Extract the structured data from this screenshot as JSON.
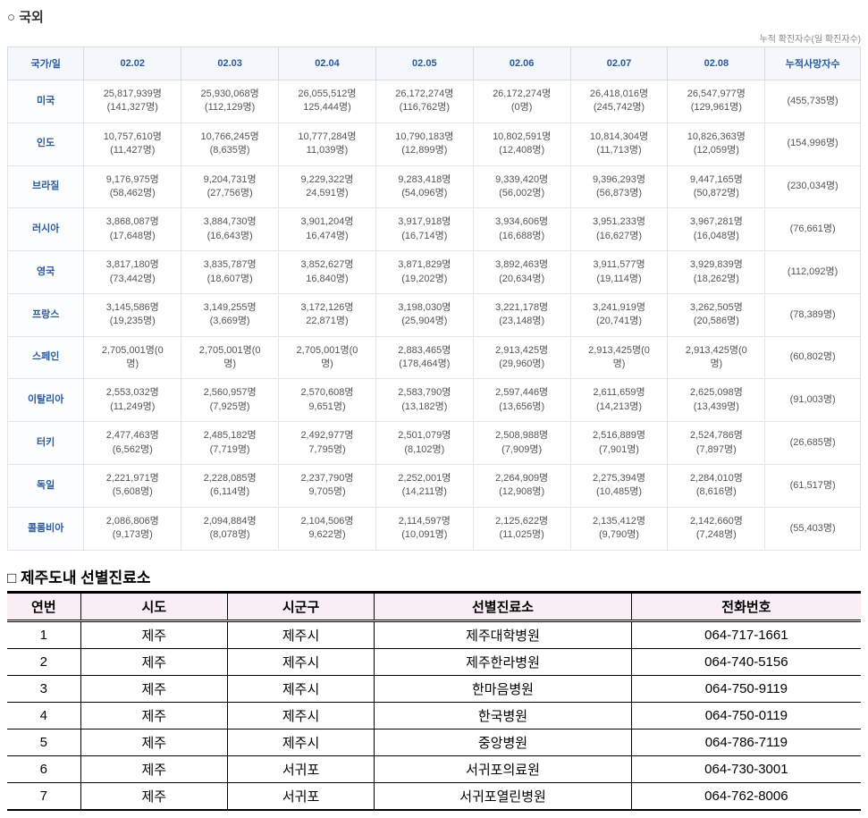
{
  "intl": {
    "section_title": "○ 국외",
    "caption": "누적 확진자수(일 확진자수)",
    "headers": {
      "country": "국가/일",
      "days": [
        "02.02",
        "02.03",
        "02.04",
        "02.05",
        "02.06",
        "02.07",
        "02.08"
      ],
      "deaths": "누적사망자수"
    },
    "rows": [
      {
        "country": "미국",
        "cells": [
          "25,817,939명\n(141,327명)",
          "25,930,068명\n(112,129명)",
          "26,055,512명\n125,444명)",
          "26,172,274명\n(116,762명)",
          "26,172,274명\n(0명)",
          "26,418,016명\n(245,742명)",
          "26,547,977명\n(129,961명)"
        ],
        "deaths": "(455,735명)"
      },
      {
        "country": "인도",
        "cells": [
          "10,757,610명\n(11,427명)",
          "10,766,245명\n(8,635명)",
          "10,777,284명\n11,039명)",
          "10,790,183명\n(12,899명)",
          "10,802,591명\n(12,408명)",
          "10,814,304명\n(11,713명)",
          "10,826,363명\n(12,059명)"
        ],
        "deaths": "(154,996명)"
      },
      {
        "country": "브라질",
        "cells": [
          "9,176,975명\n(58,462명)",
          "9,204,731명\n(27,756명)",
          "9,229,322명\n24,591명)",
          "9,283,418명\n(54,096명)",
          "9,339,420명\n(56,002명)",
          "9,396,293명\n(56,873명)",
          "9,447,165명\n(50,872명)"
        ],
        "deaths": "(230,034명)"
      },
      {
        "country": "러시아",
        "cells": [
          "3,868,087명\n(17,648명)",
          "3,884,730명\n(16,643명)",
          "3,901,204명\n16,474명)",
          "3,917,918명\n(16,714명)",
          "3,934,606명\n(16,688명)",
          "3,951,233명\n(16,627명)",
          "3,967,281명\n(16,048명)"
        ],
        "deaths": "(76,661명)"
      },
      {
        "country": "영국",
        "cells": [
          "3,817,180명\n(73,442명)",
          "3,835,787명\n(18,607명)",
          "3,852,627명\n16,840명)",
          "3,871,829명\n(19,202명)",
          "3,892,463명\n(20,634명)",
          "3,911,577명\n(19,114명)",
          "3,929,839명\n(18,262명)"
        ],
        "deaths": "(112,092명)"
      },
      {
        "country": "프랑스",
        "cells": [
          "3,145,586명\n(19,235명)",
          "3,149,255명\n(3,669명)",
          "3,172,126명\n22,871명)",
          "3,198,030명\n(25,904명)",
          "3,221,178명\n(23,148명)",
          "3,241,919명\n(20,741명)",
          "3,262,505명\n(20,586명)"
        ],
        "deaths": "(78,389명)"
      },
      {
        "country": "스페인",
        "cells": [
          "2,705,001명(0\n명)",
          "2,705,001명(0\n명)",
          "2,705,001명(0\n명)",
          "2,883,465명\n(178,464명)",
          "2,913,425명\n(29,960명)",
          "2,913,425명(0\n명)",
          "2,913,425명(0\n명)"
        ],
        "deaths": "(60,802명)"
      },
      {
        "country": "이탈리아",
        "cells": [
          "2,553,032명\n(11,249명)",
          "2,560,957명\n(7,925명)",
          "2,570,608명\n9,651명)",
          "2,583,790명\n(13,182명)",
          "2,597,446명\n(13,656명)",
          "2,611,659명\n(14,213명)",
          "2,625,098명\n(13,439명)"
        ],
        "deaths": "(91,003명)"
      },
      {
        "country": "터키",
        "cells": [
          "2,477,463명\n(6,562명)",
          "2,485,182명\n(7,719명)",
          "2,492,977명\n7,795명)",
          "2,501,079명\n(8,102명)",
          "2,508,988명\n(7,909명)",
          "2,516,889명\n(7,901명)",
          "2,524,786명\n(7,897명)"
        ],
        "deaths": "(26,685명)"
      },
      {
        "country": "독일",
        "cells": [
          "2,221,971명\n(5,608명)",
          "2,228,085명\n(6,114명)",
          "2,237,790명\n9,705명)",
          "2,252,001명\n(14,211명)",
          "2,264,909명\n(12,908명)",
          "2,275,394명\n(10,485명)",
          "2,284,010명\n(8,616명)"
        ],
        "deaths": "(61,517명)"
      },
      {
        "country": "콜롬비아",
        "cells": [
          "2,086,806명\n(9,173명)",
          "2,094,884명\n(8,078명)",
          "2,104,506명\n9,622명)",
          "2,114,597명\n(10,091명)",
          "2,125,622명\n(11,025명)",
          "2,135,412명\n(9,790명)",
          "2,142,660명\n(7,248명)"
        ],
        "deaths": "(55,403명)"
      }
    ]
  },
  "clinics": {
    "section_title": "□ 제주도내 선별진료소",
    "headers": {
      "no": "연번",
      "sido": "시도",
      "sigungu": "시군구",
      "name": "선별진료소",
      "phone": "전화번호"
    },
    "rows": [
      {
        "no": "1",
        "sido": "제주",
        "sigungu": "제주시",
        "name": "제주대학병원",
        "phone": "064-717-1661"
      },
      {
        "no": "2",
        "sido": "제주",
        "sigungu": "제주시",
        "name": "제주한라병원",
        "phone": "064-740-5156"
      },
      {
        "no": "3",
        "sido": "제주",
        "sigungu": "제주시",
        "name": "한마음병원",
        "phone": "064-750-9119"
      },
      {
        "no": "4",
        "sido": "제주",
        "sigungu": "제주시",
        "name": "한국병원",
        "phone": "064-750-0119"
      },
      {
        "no": "5",
        "sido": "제주",
        "sigungu": "제주시",
        "name": "중앙병원",
        "phone": "064-786-7119"
      },
      {
        "no": "6",
        "sido": "제주",
        "sigungu": "서귀포",
        "name": "서귀포의료원",
        "phone": "064-730-3001"
      },
      {
        "no": "7",
        "sido": "제주",
        "sigungu": "서귀포",
        "name": "서귀포열린병원",
        "phone": "064-762-8006"
      }
    ]
  }
}
